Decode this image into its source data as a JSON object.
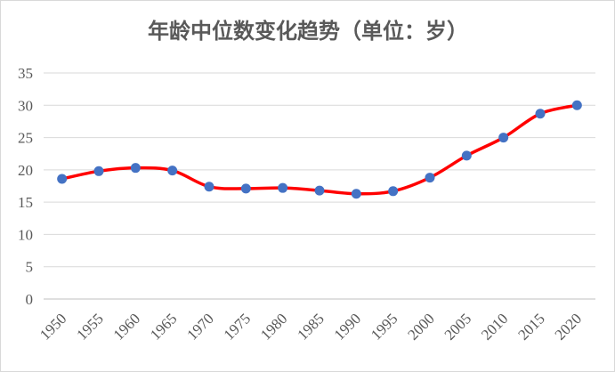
{
  "chart_data": {
    "type": "line",
    "title": "年龄中位数变化趋势（单位：岁）",
    "xlabel": "",
    "ylabel": "",
    "ylim": [
      0,
      35
    ],
    "yticks": [
      "0",
      "5",
      "10",
      "15",
      "20",
      "25",
      "30",
      "35"
    ],
    "categories": [
      "1950",
      "1955",
      "1960",
      "1965",
      "1970",
      "1975",
      "1980",
      "1985",
      "1990",
      "1995",
      "2000",
      "2005",
      "2010",
      "2015",
      "2020"
    ],
    "series": [
      {
        "values": [
          18.6,
          19.8,
          20.3,
          19.9,
          17.4,
          17.1,
          17.2,
          16.8,
          16.3,
          16.7,
          18.8,
          22.2,
          25.0,
          28.7,
          30.0
        ],
        "line_color": "#ff0000",
        "marker_color": "#4472c4"
      }
    ],
    "grid": true,
    "smooth": true,
    "legend": "none"
  }
}
